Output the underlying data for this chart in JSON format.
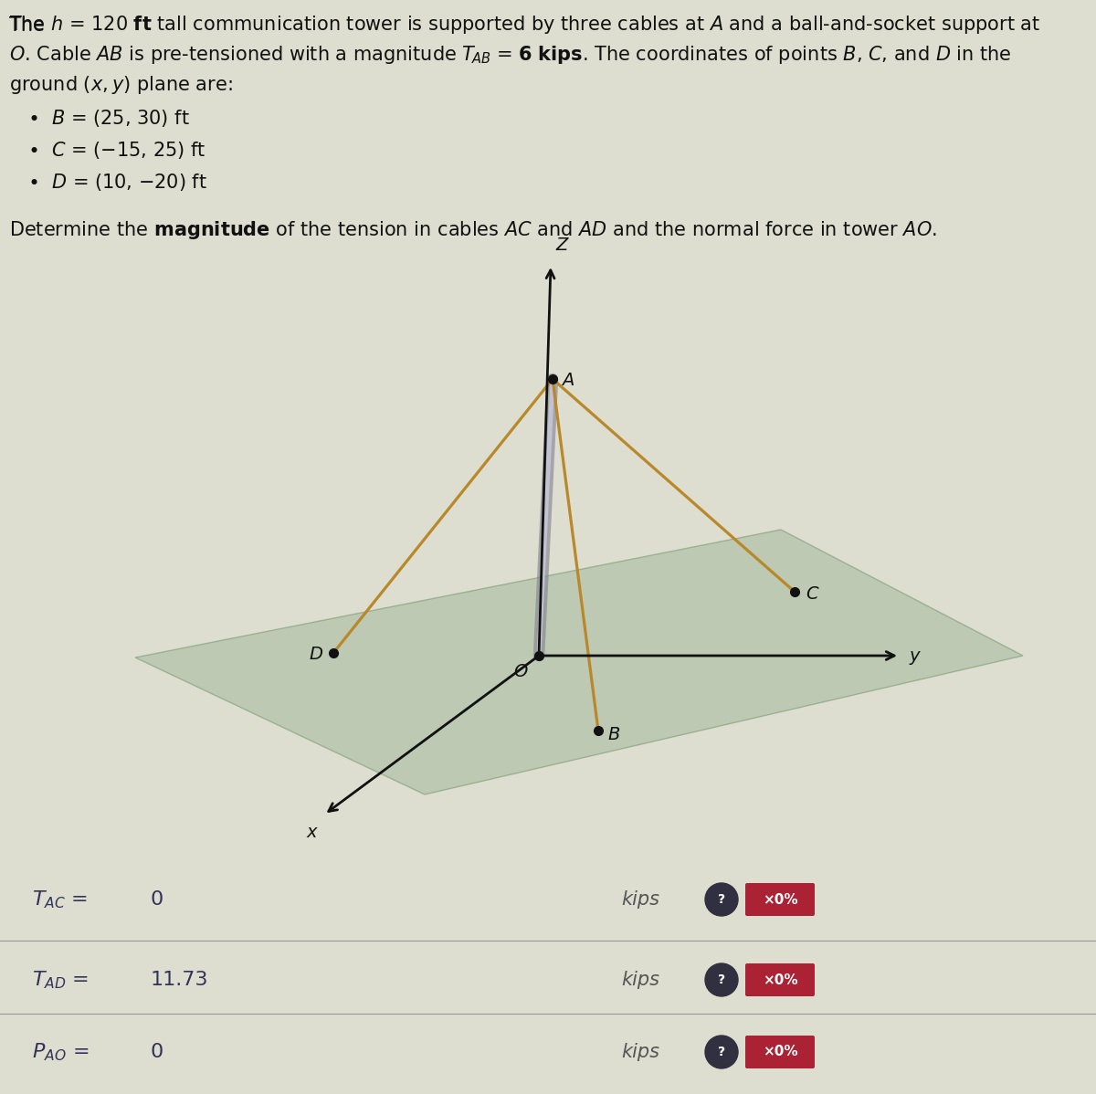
{
  "bg_color": "#deded0",
  "plane_color": "#a8bca0",
  "plane_alpha": 0.6,
  "cable_color": "#b8882a",
  "tower_dark": "#888888",
  "tower_light": "#cccccc",
  "axis_color": "#111111",
  "dot_color": "#111111",
  "label_color": "#111111",
  "result_TAC_value": "0",
  "result_TAD_value": "11.73",
  "result_PAO_value": "0",
  "badge_bg": "#aa2233",
  "badge_text": "×0%",
  "badge_text_color": "#ffffff",
  "line1": "The h = 120 ft tall communication tower is supported by three cables at A and a ball-and-socket support at",
  "line2": "O. Cable AB is pre-tensioned with a magnitude T",
  "line2b": "AB",
  "line2c": " = 6 kips. The coordinates of points B, C, and D in the",
  "line3": "ground (x, y) plane are:",
  "bullet1": "B = (25, 30) ft",
  "bullet2": "C = (−15, 25) ft",
  "bullet3": "D = (10, −20) ft",
  "det_line": "Determine the magnitude of the tension in cables AC and AD and the normal force in tower AO.",
  "fs_body": 15,
  "fs_diagram": 13,
  "fs_result": 15
}
